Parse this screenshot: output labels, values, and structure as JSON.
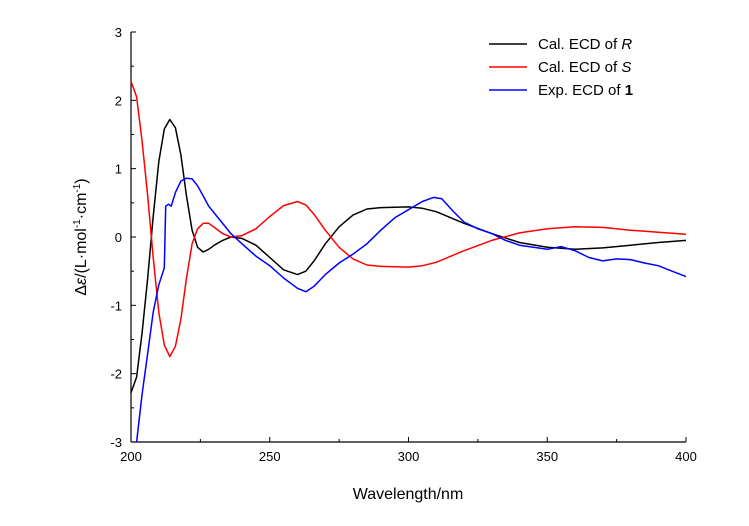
{
  "chart_data": {
    "type": "line",
    "title": "",
    "xlabel": "Wavelength/nm",
    "ylabel": "Δε/(L·mol⁻¹·cm⁻¹)",
    "ylabel_parts": {
      "prefix": "Δ",
      "symbol": "ε",
      "open": "/(L·mol",
      "exp1": "-1",
      "mid": "·cm",
      "exp2": "-1",
      "close": ")"
    },
    "xlim": [
      200,
      400
    ],
    "ylim": [
      -3,
      3
    ],
    "x_ticks": [
      200,
      250,
      300,
      350,
      400
    ],
    "x_tick_labels": [
      "200",
      "250",
      "300",
      "350",
      "400"
    ],
    "y_ticks": [
      -3,
      -2,
      -1,
      0,
      1,
      2,
      3
    ],
    "y_tick_labels": [
      "-3",
      "-2",
      "-1",
      "0",
      "1",
      "2",
      "3"
    ],
    "grid": false,
    "legend_position": "top-right",
    "series": [
      {
        "name": "Cal. ECD of R",
        "label_prefix": "Cal. ECD of ",
        "label_emph": "R",
        "emph_style": "italic",
        "color": "#000000",
        "points": [
          [
            200,
            -2.28
          ],
          [
            202,
            -2.05
          ],
          [
            204,
            -1.4
          ],
          [
            206,
            -0.6
          ],
          [
            208,
            0.3
          ],
          [
            210,
            1.1
          ],
          [
            212,
            1.58
          ],
          [
            214,
            1.72
          ],
          [
            216,
            1.6
          ],
          [
            218,
            1.2
          ],
          [
            220,
            0.6
          ],
          [
            222,
            0.1
          ],
          [
            224,
            -0.15
          ],
          [
            226,
            -0.22
          ],
          [
            228,
            -0.18
          ],
          [
            230,
            -0.12
          ],
          [
            233,
            -0.05
          ],
          [
            236,
            0.0
          ],
          [
            240,
            -0.02
          ],
          [
            245,
            -0.12
          ],
          [
            250,
            -0.3
          ],
          [
            255,
            -0.48
          ],
          [
            260,
            -0.55
          ],
          [
            263,
            -0.5
          ],
          [
            266,
            -0.35
          ],
          [
            270,
            -0.1
          ],
          [
            275,
            0.15
          ],
          [
            280,
            0.32
          ],
          [
            285,
            0.41
          ],
          [
            290,
            0.43
          ],
          [
            300,
            0.44
          ],
          [
            305,
            0.42
          ],
          [
            310,
            0.37
          ],
          [
            320,
            0.2
          ],
          [
            330,
            0.05
          ],
          [
            340,
            -0.08
          ],
          [
            350,
            -0.15
          ],
          [
            360,
            -0.18
          ],
          [
            370,
            -0.16
          ],
          [
            380,
            -0.12
          ],
          [
            390,
            -0.08
          ],
          [
            400,
            -0.05
          ]
        ]
      },
      {
        "name": "Cal. ECD of S",
        "label_prefix": "Cal. ECD of ",
        "label_emph": "S",
        "emph_style": "italic",
        "color": "#ff0000",
        "points": [
          [
            200,
            2.28
          ],
          [
            202,
            2.05
          ],
          [
            204,
            1.4
          ],
          [
            206,
            0.6
          ],
          [
            208,
            -0.3
          ],
          [
            210,
            -1.1
          ],
          [
            212,
            -1.58
          ],
          [
            214,
            -1.75
          ],
          [
            216,
            -1.6
          ],
          [
            218,
            -1.2
          ],
          [
            220,
            -0.6
          ],
          [
            222,
            -0.1
          ],
          [
            224,
            0.12
          ],
          [
            226,
            0.2
          ],
          [
            228,
            0.2
          ],
          [
            230,
            0.14
          ],
          [
            233,
            0.05
          ],
          [
            236,
            0.0
          ],
          [
            240,
            0.02
          ],
          [
            245,
            0.12
          ],
          [
            250,
            0.3
          ],
          [
            255,
            0.46
          ],
          [
            260,
            0.52
          ],
          [
            263,
            0.47
          ],
          [
            266,
            0.33
          ],
          [
            270,
            0.1
          ],
          [
            275,
            -0.15
          ],
          [
            280,
            -0.32
          ],
          [
            285,
            -0.41
          ],
          [
            290,
            -0.43
          ],
          [
            300,
            -0.44
          ],
          [
            305,
            -0.42
          ],
          [
            310,
            -0.37
          ],
          [
            320,
            -0.2
          ],
          [
            330,
            -0.05
          ],
          [
            340,
            0.06
          ],
          [
            350,
            0.12
          ],
          [
            360,
            0.15
          ],
          [
            370,
            0.14
          ],
          [
            380,
            0.1
          ],
          [
            390,
            0.07
          ],
          [
            400,
            0.04
          ]
        ]
      },
      {
        "name": "Exp. ECD of 1",
        "label_prefix": "Exp. ECD of ",
        "label_emph": "1",
        "emph_style": "bold",
        "color": "#0000ff",
        "points": [
          [
            202,
            -3.0
          ],
          [
            204,
            -2.3
          ],
          [
            206,
            -1.7
          ],
          [
            208,
            -1.1
          ],
          [
            210,
            -0.7
          ],
          [
            212,
            -0.45
          ],
          [
            212.5,
            0.45
          ],
          [
            213.5,
            0.48
          ],
          [
            214.5,
            0.45
          ],
          [
            216,
            0.65
          ],
          [
            218,
            0.82
          ],
          [
            220,
            0.86
          ],
          [
            222,
            0.85
          ],
          [
            224,
            0.75
          ],
          [
            226,
            0.6
          ],
          [
            228,
            0.45
          ],
          [
            232,
            0.25
          ],
          [
            236,
            0.05
          ],
          [
            240,
            -0.1
          ],
          [
            245,
            -0.28
          ],
          [
            250,
            -0.42
          ],
          [
            255,
            -0.6
          ],
          [
            260,
            -0.75
          ],
          [
            263,
            -0.8
          ],
          [
            266,
            -0.72
          ],
          [
            270,
            -0.55
          ],
          [
            275,
            -0.38
          ],
          [
            280,
            -0.25
          ],
          [
            285,
            -0.1
          ],
          [
            290,
            0.1
          ],
          [
            295,
            0.28
          ],
          [
            300,
            0.4
          ],
          [
            305,
            0.52
          ],
          [
            309,
            0.58
          ],
          [
            312,
            0.56
          ],
          [
            316,
            0.38
          ],
          [
            320,
            0.22
          ],
          [
            325,
            0.12
          ],
          [
            330,
            0.05
          ],
          [
            335,
            -0.05
          ],
          [
            340,
            -0.12
          ],
          [
            350,
            -0.18
          ],
          [
            355,
            -0.14
          ],
          [
            360,
            -0.2
          ],
          [
            365,
            -0.3
          ],
          [
            370,
            -0.35
          ],
          [
            375,
            -0.32
          ],
          [
            380,
            -0.33
          ],
          [
            385,
            -0.38
          ],
          [
            390,
            -0.42
          ],
          [
            395,
            -0.5
          ],
          [
            400,
            -0.58
          ]
        ]
      }
    ]
  }
}
